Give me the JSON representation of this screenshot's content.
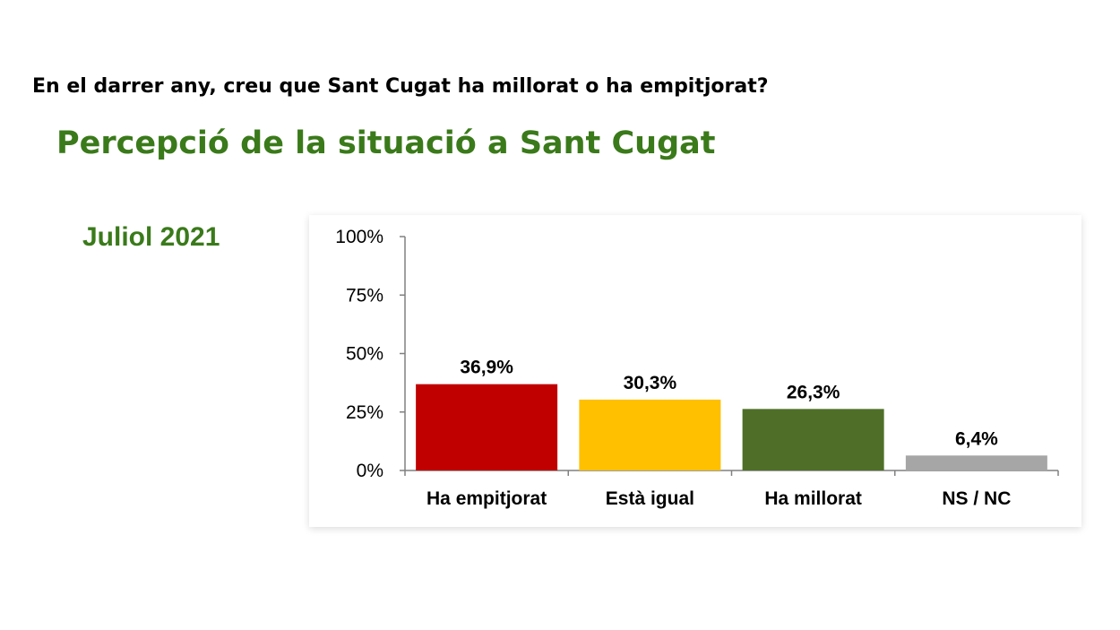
{
  "question": "En el darrer any, creu que Sant Cugat ha millorat o ha empitjorat?",
  "title": "Percepció de la situació a Sant Cugat",
  "period": "Juliol 2021",
  "chart_data": {
    "type": "bar",
    "categories": [
      "Ha empitjorat",
      "Està igual",
      "Ha millorat",
      "NS / NC"
    ],
    "values": [
      36.9,
      30.3,
      26.3,
      6.4
    ],
    "data_labels": [
      "36,9%",
      "30,3%",
      "26,3%",
      "6,4%"
    ],
    "colors": [
      "#c00000",
      "#ffc000",
      "#4f6f28",
      "#a6a6a6"
    ],
    "ylim": [
      0,
      100
    ],
    "yticks": [
      0,
      25,
      50,
      75,
      100
    ],
    "ytick_labels": [
      "0%",
      "25%",
      "50%",
      "75%",
      "100%"
    ],
    "xlabel": "",
    "ylabel": "",
    "grid": false,
    "legend": "none"
  }
}
